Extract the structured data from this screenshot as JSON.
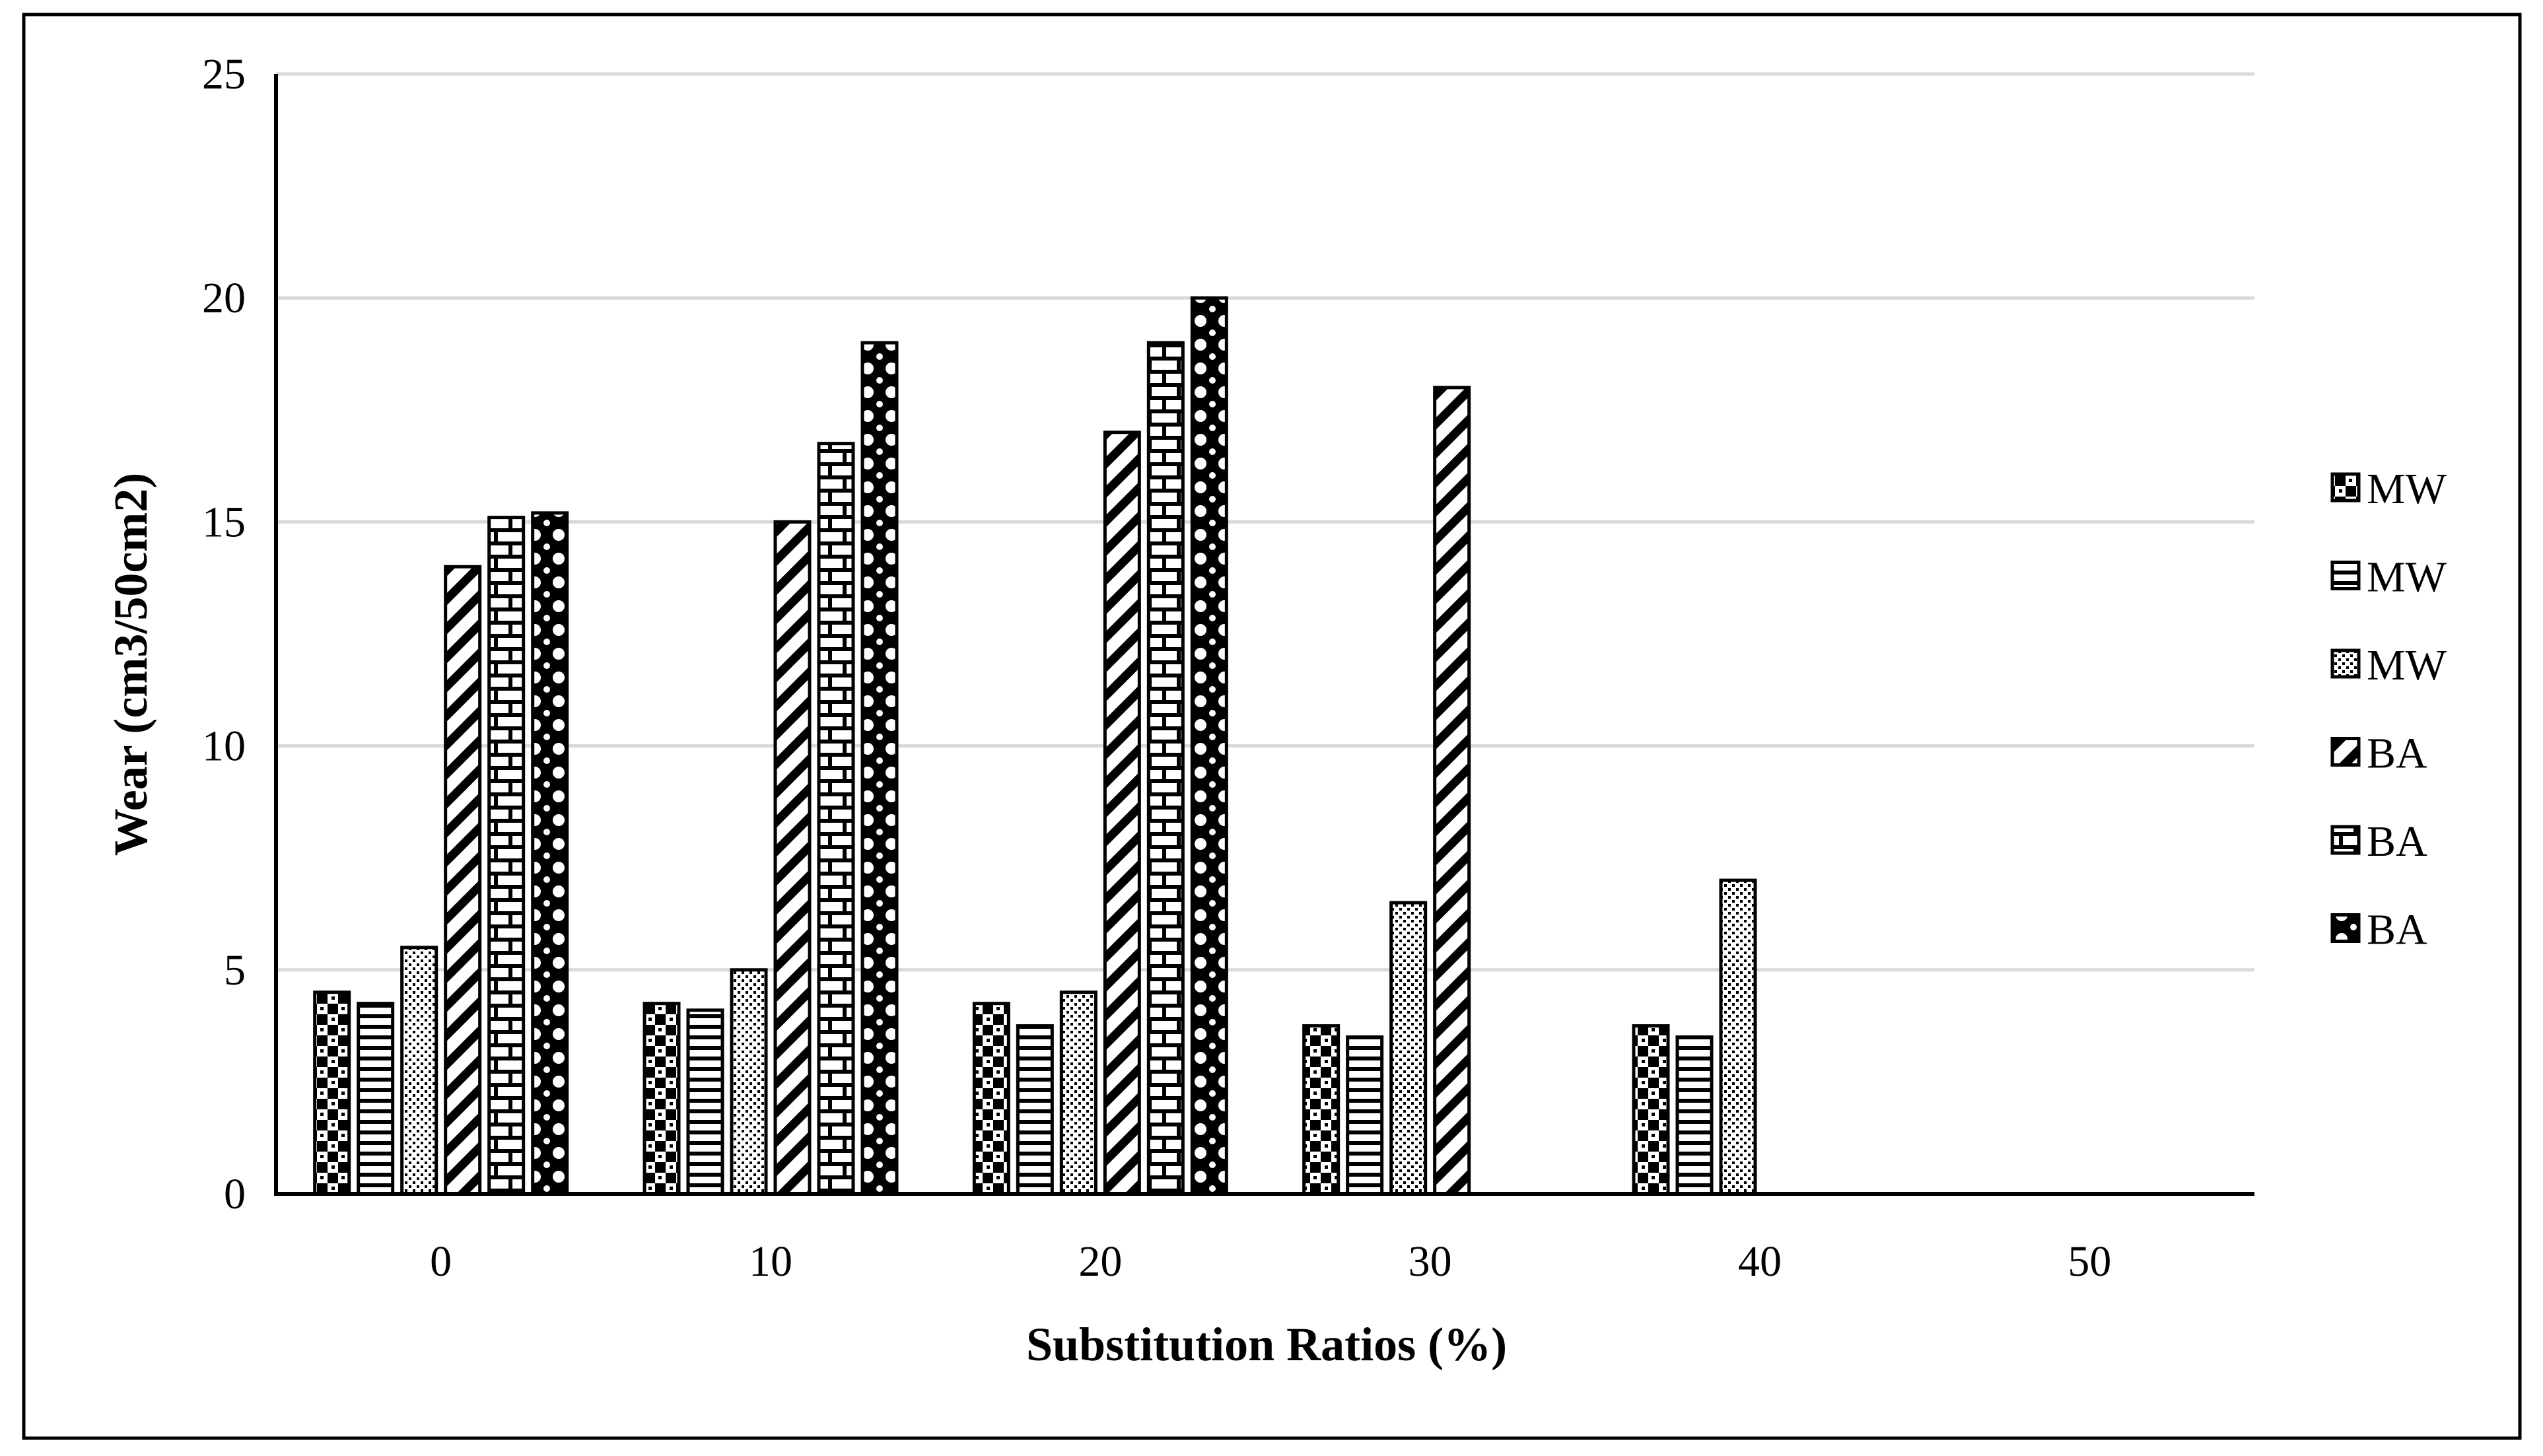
{
  "colors": {
    "background": "#ffffff",
    "ink": "#000000",
    "grid": "#d9d9d9"
  },
  "chart_data": {
    "type": "bar",
    "title": "",
    "xlabel": "Substitution Ratios (%)",
    "ylabel": "Wear (cm3/50cm2)",
    "categories": [
      "0",
      "10",
      "20",
      "30",
      "40",
      "50"
    ],
    "ylim": [
      0,
      25
    ],
    "yticks": [
      0,
      5,
      10,
      15,
      20,
      25
    ],
    "grid": true,
    "legend_position": "right",
    "series": [
      {
        "name": "MW",
        "pattern": "checker",
        "values": [
          4.5,
          4.25,
          4.25,
          3.75,
          3.75,
          null
        ]
      },
      {
        "name": "MW",
        "pattern": "horizontal-lines",
        "values": [
          4.25,
          4.1,
          3.75,
          3.5,
          3.5,
          null
        ]
      },
      {
        "name": "MW",
        "pattern": "dots",
        "values": [
          5.5,
          5.0,
          4.5,
          6.5,
          7.0,
          null
        ]
      },
      {
        "name": "BA",
        "pattern": "diagonal-stripes",
        "values": [
          14.0,
          15.0,
          17.0,
          18.0,
          null,
          null
        ]
      },
      {
        "name": "BA",
        "pattern": "brick",
        "values": [
          15.1,
          16.75,
          19.0,
          null,
          null,
          null
        ]
      },
      {
        "name": "BA",
        "pattern": "circles",
        "values": [
          15.2,
          19.0,
          20.0,
          null,
          null,
          null
        ]
      }
    ]
  }
}
